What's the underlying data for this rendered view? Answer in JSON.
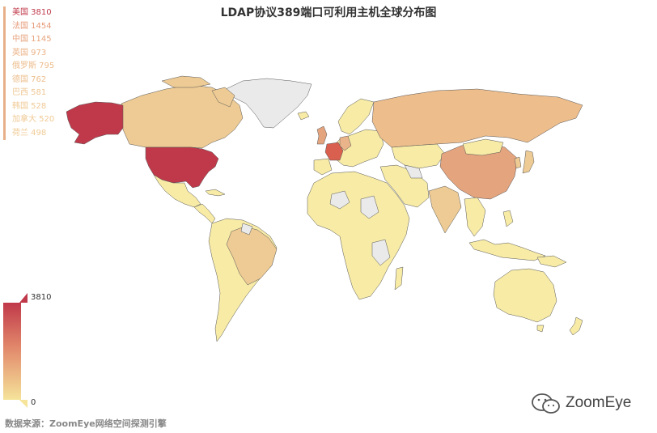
{
  "title": "LDAP协议389端口可利用主机全球分布图",
  "legend": [
    {
      "label": "美国 3810",
      "color": "#c0394a"
    },
    {
      "label": "法国 1454",
      "color": "#e79a78"
    },
    {
      "label": "中国 1145",
      "color": "#e7a57f"
    },
    {
      "label": "英国 973",
      "color": "#ebb387"
    },
    {
      "label": "俄罗斯 795",
      "color": "#edbd8c"
    },
    {
      "label": "德国 762",
      "color": "#edbf8e"
    },
    {
      "label": "巴西 581",
      "color": "#efc793"
    },
    {
      "label": "韩国 528",
      "color": "#f0ca95"
    },
    {
      "label": "加拿大 520",
      "color": "#f0ca95"
    },
    {
      "label": "荷兰 498",
      "color": "#f0cb96"
    }
  ],
  "scale": {
    "max": "3810",
    "min": "0"
  },
  "source": "数据来源：ZoomEye网络空间探测引擎",
  "brand": "ZoomEye",
  "colors": {
    "low": "#f7eba6",
    "mid": "#eecb94",
    "nodata": "#eaeaea",
    "usa": "#c0394a",
    "france": "#d9604e",
    "china": "#e4a47e",
    "border": "#555555"
  },
  "chart_data": {
    "type": "map",
    "regions": [
      {
        "name": "美国",
        "value": 3810
      },
      {
        "name": "法国",
        "value": 1454
      },
      {
        "name": "中国",
        "value": 1145
      },
      {
        "name": "英国",
        "value": 973
      },
      {
        "name": "俄罗斯",
        "value": 795
      },
      {
        "name": "德国",
        "value": 762
      },
      {
        "name": "巴西",
        "value": 581
      },
      {
        "name": "韩国",
        "value": 528
      },
      {
        "name": "加拿大",
        "value": 520
      },
      {
        "name": "荷兰",
        "value": 498
      }
    ],
    "scale_range": [
      0,
      3810
    ]
  }
}
